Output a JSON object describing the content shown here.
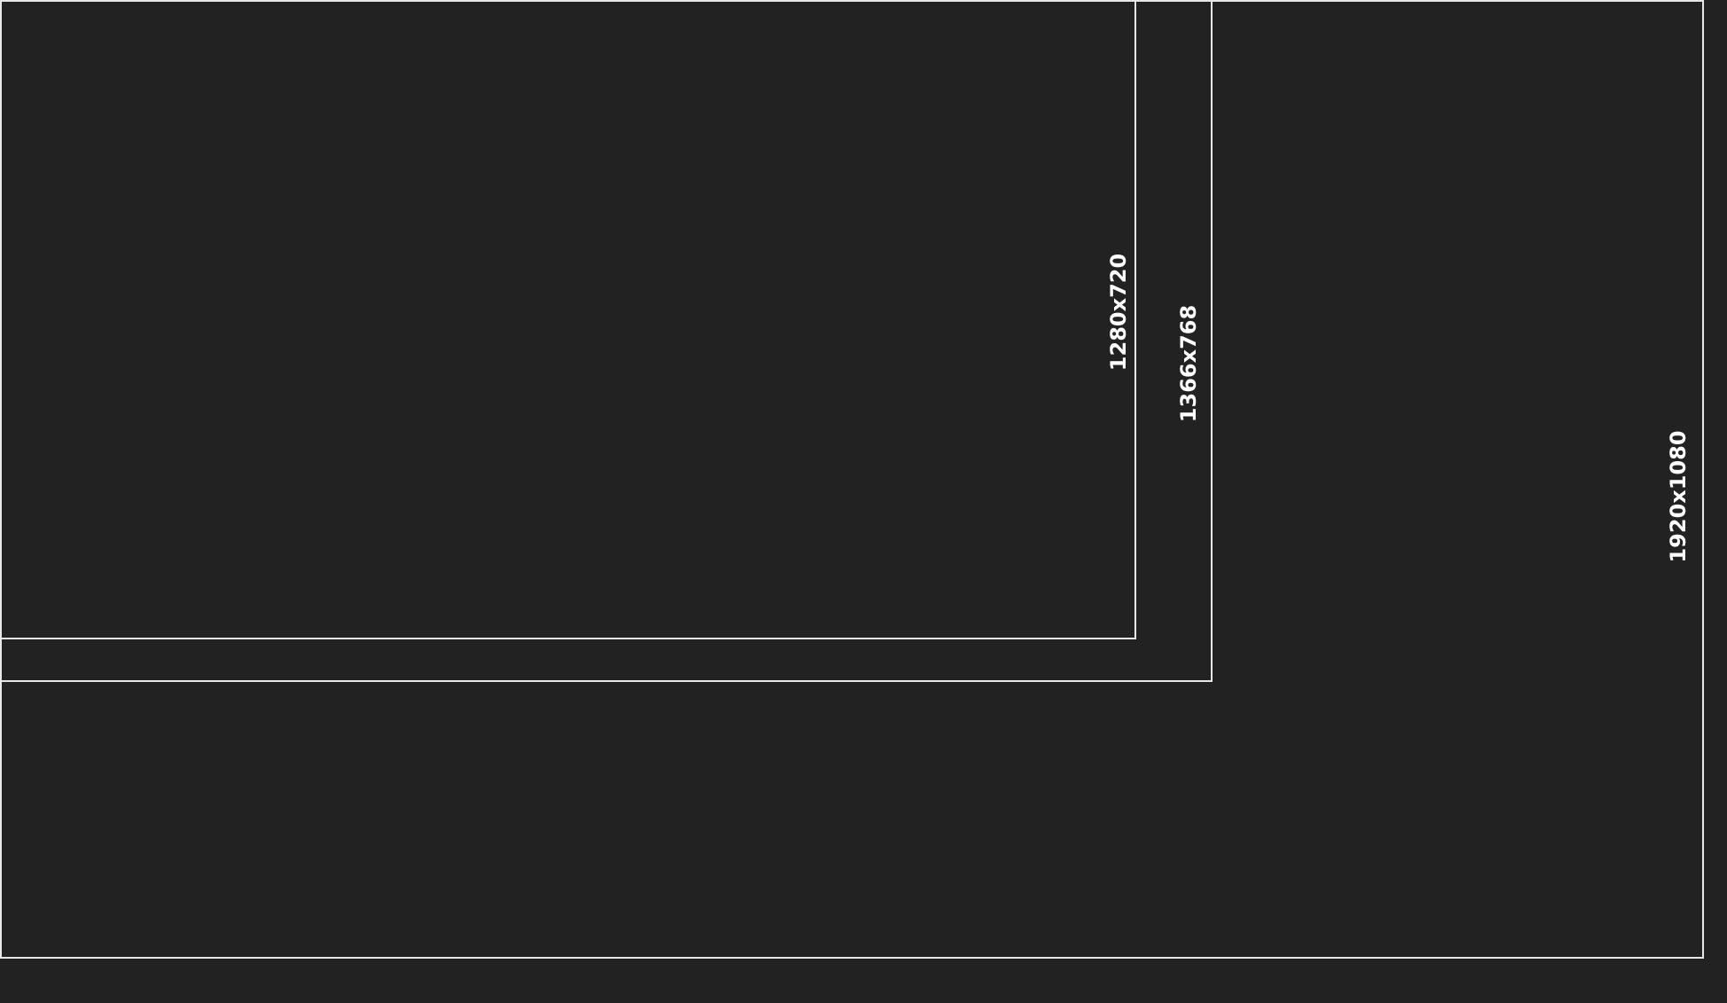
{
  "background_color": "#222222",
  "frame_color": "#e8e8e8",
  "label_color": "#ffffff",
  "frames": [
    {
      "label": "1280x720"
    },
    {
      "label": "1366x768"
    },
    {
      "label": "1920x1080"
    }
  ]
}
